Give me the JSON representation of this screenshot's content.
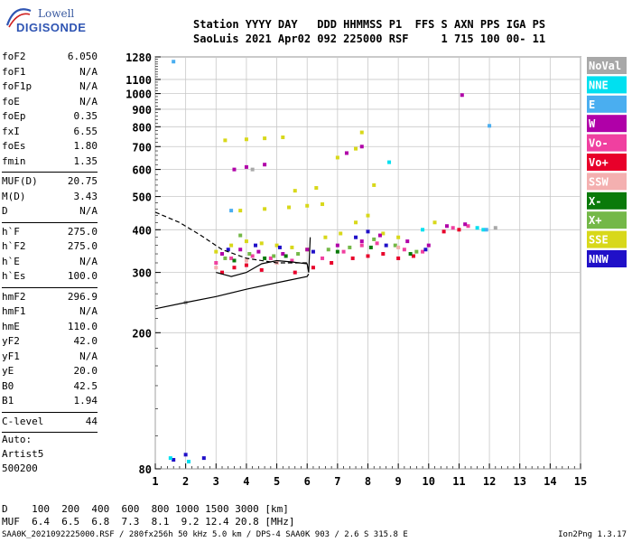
{
  "logo": {
    "line1": "Lowell",
    "line2": "DIGISONDE"
  },
  "header": {
    "line1": "Station YYYY DAY   DDD HHMMSS P1  FFS S AXN PPS IGA PS",
    "line2": "SaoLuis 2021 Apr02 092 225000 RSF     1 715 100 00- 11"
  },
  "params_group1": [
    {
      "k": "foF2",
      "v": "6.050"
    },
    {
      "k": "foF1",
      "v": "N/A"
    },
    {
      "k": "foF1p",
      "v": "N/A"
    },
    {
      "k": "foE",
      "v": "N/A"
    },
    {
      "k": "foEp",
      "v": "0.35"
    },
    {
      "k": "fxI",
      "v": "6.55"
    },
    {
      "k": "foEs",
      "v": "1.80"
    },
    {
      "k": "fmin",
      "v": "1.35"
    }
  ],
  "params_group2": [
    {
      "k": "MUF(D)",
      "v": "20.75"
    },
    {
      "k": "M(D)",
      "v": "3.43"
    },
    {
      "k": "D",
      "v": "N/A"
    }
  ],
  "params_group3": [
    {
      "k": "h`F",
      "v": "275.0"
    },
    {
      "k": "h`F2",
      "v": "275.0"
    },
    {
      "k": "h`E",
      "v": "N/A"
    },
    {
      "k": "h`Es",
      "v": "100.0"
    }
  ],
  "params_group4": [
    {
      "k": "hmF2",
      "v": "296.9"
    },
    {
      "k": "hmF1",
      "v": "N/A"
    },
    {
      "k": "hmE",
      "v": "110.0"
    },
    {
      "k": "yF2",
      "v": "42.0"
    },
    {
      "k": "yF1",
      "v": "N/A"
    },
    {
      "k": "yE",
      "v": "20.0"
    },
    {
      "k": "B0",
      "v": "42.5"
    },
    {
      "k": "B1",
      "v": "1.94"
    }
  ],
  "params_group5": [
    {
      "k": "C-level",
      "v": "44"
    }
  ],
  "auto": {
    "line1": "Auto:",
    "line2": "Artist5",
    "line3": "500200"
  },
  "muf_table": {
    "line1": "D    100  200  400  600  800 1000 1500 3000 [km]",
    "line2": "MUF  6.4  6.5  6.8  7.3  8.1  9.2 12.4 20.8 [MHz]"
  },
  "footer": {
    "left": "SAA0K_2021092225000.RSF / 280fx256h 50 kHz 5.0 km / DPS-4 SAA0K 903 / 2.6 S 315.8 E",
    "right": "Ion2Png 1.3.17"
  },
  "chart_data": {
    "type": "scatter",
    "title": "",
    "xlabel": "",
    "ylabel": "",
    "xlim": [
      1,
      15
    ],
    "ylim": [
      80,
      1280
    ],
    "x_ticks": [
      "1",
      "2",
      "3",
      "4",
      "5",
      "6",
      "7",
      "8",
      "9",
      "10",
      "11",
      "12",
      "13",
      "14",
      "15"
    ],
    "y_ticks": [
      "80",
      "200",
      "300",
      "400",
      "500",
      "600",
      "700",
      "800",
      "900",
      "1000",
      "1100",
      "1280"
    ],
    "y_scale": "log",
    "grid": true,
    "legend": {
      "placement": "right",
      "entries": [
        {
          "name": "NoVal",
          "color": "#a8a8a8"
        },
        {
          "name": "NNE",
          "color": "#00e0f0"
        },
        {
          "name": "E",
          "color": "#4aaef0"
        },
        {
          "name": "W",
          "color": "#b000a8"
        },
        {
          "name": "Vo-",
          "color": "#f040a0"
        },
        {
          "name": "Vo+",
          "color": "#e8002a"
        },
        {
          "name": "SSW",
          "color": "#f4b0b0"
        },
        {
          "name": "X-",
          "color": "#0a7a0a"
        },
        {
          "name": "X+",
          "color": "#74b848"
        },
        {
          "name": "SSE",
          "color": "#d8d81a"
        },
        {
          "name": "NNW",
          "color": "#2010c8"
        }
      ]
    },
    "series": [
      {
        "name": "Vo+",
        "color": "#e8002a",
        "points": [
          [
            3.2,
            300
          ],
          [
            3.6,
            310
          ],
          [
            4.0,
            315
          ],
          [
            4.5,
            305
          ],
          [
            5.0,
            320
          ],
          [
            5.6,
            300
          ],
          [
            6.2,
            310
          ],
          [
            6.8,
            320
          ],
          [
            7.5,
            330
          ],
          [
            8.0,
            335
          ],
          [
            8.5,
            340
          ],
          [
            9.0,
            330
          ],
          [
            9.5,
            335
          ],
          [
            10.5,
            395
          ],
          [
            11.0,
            400
          ]
        ]
      },
      {
        "name": "Vo-",
        "color": "#f040a0",
        "points": [
          [
            3.0,
            320
          ],
          [
            3.5,
            330
          ],
          [
            4.2,
            335
          ],
          [
            4.8,
            330
          ],
          [
            5.5,
            325
          ],
          [
            6.5,
            330
          ],
          [
            7.2,
            345
          ],
          [
            7.8,
            360
          ],
          [
            8.3,
            365
          ],
          [
            9.2,
            350
          ],
          [
            9.8,
            345
          ],
          [
            10.8,
            405
          ],
          [
            11.3,
            410
          ]
        ]
      },
      {
        "name": "SSE",
        "color": "#d8d81a",
        "points": [
          [
            3.0,
            345
          ],
          [
            3.5,
            360
          ],
          [
            4.0,
            370
          ],
          [
            4.5,
            365
          ],
          [
            5.0,
            360
          ],
          [
            5.5,
            355
          ],
          [
            6.0,
            350
          ],
          [
            6.6,
            380
          ],
          [
            7.1,
            390
          ],
          [
            7.6,
            420
          ],
          [
            8.0,
            440
          ],
          [
            8.5,
            390
          ],
          [
            9.0,
            380
          ],
          [
            10.2,
            420
          ],
          [
            3.3,
            730
          ],
          [
            4.0,
            735
          ],
          [
            4.6,
            740
          ],
          [
            5.2,
            745
          ],
          [
            3.8,
            455
          ],
          [
            4.6,
            460
          ],
          [
            5.4,
            465
          ],
          [
            6.0,
            470
          ],
          [
            6.5,
            475
          ],
          [
            5.6,
            520
          ],
          [
            6.3,
            530
          ],
          [
            7.0,
            650
          ],
          [
            7.6,
            690
          ],
          [
            7.8,
            770
          ],
          [
            8.2,
            540
          ]
        ]
      },
      {
        "name": "W",
        "color": "#b000a8",
        "points": [
          [
            3.2,
            340
          ],
          [
            3.8,
            350
          ],
          [
            4.4,
            345
          ],
          [
            5.2,
            340
          ],
          [
            6.0,
            350
          ],
          [
            7.0,
            360
          ],
          [
            7.8,
            370
          ],
          [
            8.4,
            385
          ],
          [
            9.3,
            370
          ],
          [
            10.0,
            360
          ],
          [
            10.6,
            410
          ],
          [
            11.2,
            415
          ],
          [
            3.6,
            600
          ],
          [
            4.0,
            610
          ],
          [
            4.6,
            620
          ],
          [
            7.3,
            670
          ],
          [
            7.8,
            700
          ],
          [
            11.1,
            990
          ]
        ]
      },
      {
        "name": "X+",
        "color": "#74b848",
        "points": [
          [
            3.3,
            330
          ],
          [
            4.1,
            340
          ],
          [
            4.9,
            335
          ],
          [
            5.7,
            340
          ],
          [
            6.7,
            350
          ],
          [
            7.4,
            355
          ],
          [
            8.2,
            375
          ],
          [
            8.9,
            360
          ],
          [
            9.6,
            345
          ],
          [
            3.8,
            385
          ]
        ]
      },
      {
        "name": "X-",
        "color": "#0a7a0a",
        "points": [
          [
            3.6,
            325
          ],
          [
            4.6,
            330
          ],
          [
            5.3,
            335
          ],
          [
            7.0,
            345
          ],
          [
            8.1,
            355
          ],
          [
            9.4,
            340
          ]
        ]
      },
      {
        "name": "NNW",
        "color": "#2010c8",
        "points": [
          [
            3.4,
            350
          ],
          [
            4.3,
            360
          ],
          [
            5.1,
            355
          ],
          [
            6.2,
            345
          ],
          [
            7.6,
            380
          ],
          [
            8.0,
            395
          ],
          [
            8.6,
            360
          ],
          [
            9.9,
            350
          ],
          [
            1.6,
            85
          ],
          [
            2.0,
            88
          ],
          [
            2.6,
            86
          ]
        ]
      },
      {
        "name": "NNE",
        "color": "#00e0f0",
        "points": [
          [
            1.5,
            86
          ],
          [
            2.1,
            84
          ],
          [
            11.6,
            405
          ],
          [
            11.8,
            400
          ],
          [
            9.8,
            400
          ],
          [
            8.7,
            630
          ]
        ]
      },
      {
        "name": "E",
        "color": "#4aaef0",
        "points": [
          [
            1.6,
            1240
          ],
          [
            12.0,
            805
          ],
          [
            3.5,
            455
          ],
          [
            11.9,
            400
          ]
        ]
      },
      {
        "name": "SSW",
        "color": "#f4b0b0",
        "points": [
          [
            3.0,
            310
          ],
          [
            4.0,
            325
          ],
          [
            5.0,
            320
          ],
          [
            9.0,
            355
          ]
        ]
      },
      {
        "name": "NoVal",
        "color": "#a8a8a8",
        "points": [
          [
            2.0,
            245
          ],
          [
            4.2,
            600
          ],
          [
            12.2,
            405
          ]
        ]
      }
    ],
    "curves": [
      {
        "name": "profile-solid",
        "color": "#000000",
        "style": "solid",
        "points": [
          [
            1.0,
            235
          ],
          [
            2.0,
            245
          ],
          [
            3.0,
            255
          ],
          [
            4.0,
            268
          ],
          [
            5.0,
            280
          ],
          [
            6.0,
            292
          ],
          [
            6.05,
            297
          ]
        ]
      },
      {
        "name": "profile-dashed",
        "color": "#000000",
        "style": "dashed",
        "points": [
          [
            1.0,
            450
          ],
          [
            1.8,
            420
          ],
          [
            2.5,
            385
          ],
          [
            3.2,
            350
          ],
          [
            4.0,
            330
          ],
          [
            5.0,
            320
          ],
          [
            6.0,
            320
          ]
        ]
      },
      {
        "name": "profile-loop",
        "color": "#000000",
        "style": "solid",
        "points": [
          [
            3.0,
            300
          ],
          [
            3.5,
            292
          ],
          [
            4.0,
            300
          ],
          [
            4.5,
            318
          ],
          [
            5.0,
            325
          ],
          [
            5.5,
            322
          ],
          [
            6.0,
            318
          ],
          [
            6.05,
            300
          ],
          [
            6.1,
            380
          ]
        ]
      }
    ]
  }
}
